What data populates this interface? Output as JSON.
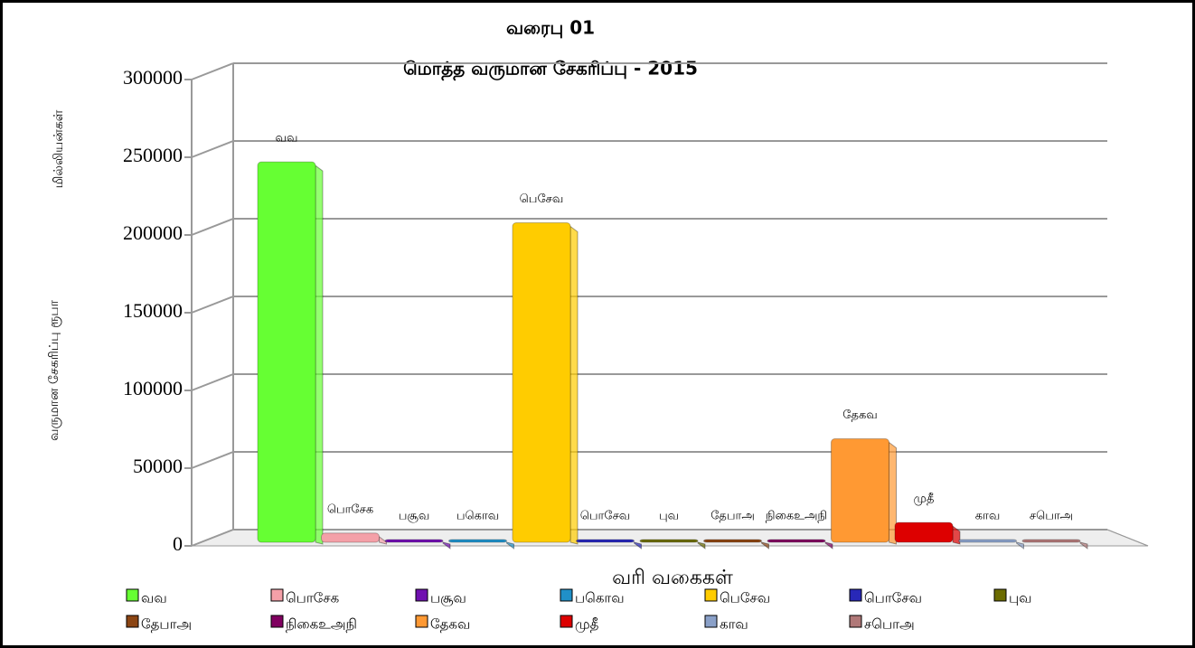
{
  "chart_data": {
    "type": "bar",
    "title": "வரைபு 01",
    "subtitle": "மொத்த வருமான சேகரிப்பு - 2015",
    "y_label": [
      "மில்லியன்கள்",
      "வருமான சேகரிப்பு ரூபா"
    ],
    "x_label": "வரி வகைகள்",
    "categories": [
      "வவ",
      "பொசேக",
      "பசூவ",
      "பகொவ",
      "பெசேவ",
      "பொசேவ",
      "புவ",
      "தேபாஅ",
      "நிகைஉஅநி",
      "தேகவ",
      "முதீ",
      "காவ",
      "சபொஅ"
    ],
    "values": [
      250000,
      6000,
      1000,
      1000,
      210000,
      1000,
      500,
      500,
      1000,
      68000,
      13000,
      1000,
      300
    ],
    "colors": [
      "#66ff33",
      "#f4a0a8",
      "#7010b0",
      "#2090c8",
      "#ffcc00",
      "#2828b8",
      "#6b6b00",
      "#8b4513",
      "#800060",
      "#ff9933",
      "#dd0000",
      "#8aa0c8",
      "#b07878"
    ],
    "ylim": [
      0,
      300000
    ],
    "yticks": [
      0,
      50000,
      100000,
      150000,
      200000,
      250000,
      300000
    ],
    "grid": true
  }
}
